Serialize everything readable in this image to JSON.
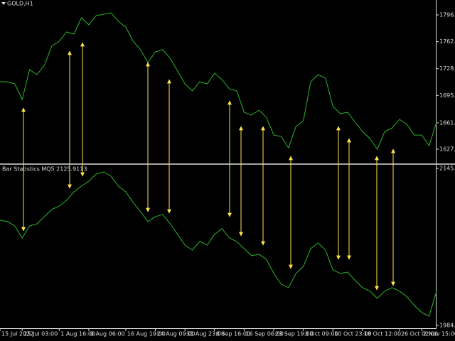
{
  "chart_data": [
    {
      "type": "line",
      "title": "GOLD,H1",
      "color": "#2bb52b",
      "values": [
        1712.6,
        1712.6,
        1709.9,
        1690.3,
        1727.7,
        1721.5,
        1733.1,
        1757.2,
        1763.4,
        1775.0,
        1772.3,
        1792.8,
        1783.9,
        1795.5,
        1797.3,
        1799.1,
        1788.4,
        1781.2,
        1763.4,
        1752.7,
        1736.6,
        1750.0,
        1752.7,
        1742.0,
        1725.9,
        1709.9,
        1701.0,
        1712.6,
        1709.9,
        1723.3,
        1715.3,
        1703.7,
        1701.0,
        1674.2,
        1670.7,
        1676.9,
        1668.0,
        1645.7,
        1643.9,
        1629.7,
        1656.4,
        1663.5,
        1712.6,
        1721.5,
        1717.0,
        1681.4,
        1672.5,
        1674.2,
        1661.8,
        1650.2,
        1641.3,
        1627.9,
        1650.2,
        1654.6,
        1665.3,
        1659.1,
        1645.7,
        1645.7,
        1632.3,
        1661.8
      ],
      "ylim": [
        1610.1,
        1815.1
      ],
      "yticks": [
        {
          "value": 1796.4,
          "label": "1796.40"
        },
        {
          "value": 1762.9,
          "label": "1762.90"
        },
        {
          "value": 1728.9,
          "label": "1728.90"
        },
        {
          "value": 1695.4,
          "label": "1695.40"
        },
        {
          "value": 1661.0,
          "label": "1661.00"
        },
        {
          "value": 1627.9,
          "label": "1627.90"
        }
      ]
    },
    {
      "type": "line",
      "title": "Bar Statistics MQ5 2125.9113",
      "color": "#2bb52b",
      "categories": [
        "15 Jul 2022",
        null,
        null,
        "25 Jul 03:00",
        null,
        null,
        null,
        null,
        "1 Aug 16:00",
        null,
        null,
        null,
        "9 Aug 06:00",
        null,
        null,
        null,
        null,
        "16 Aug 19:00",
        null,
        null,
        null,
        "24 Aug 09:00",
        null,
        null,
        null,
        "31 Aug 23:00",
        null,
        null,
        null,
        "8 Sep 16:00",
        null,
        null,
        null,
        "16 Sep 06:00",
        null,
        null,
        null,
        "23 Sep 19:00",
        null,
        null,
        null,
        "3 Oct 09:00",
        null,
        null,
        null,
        "10 Oct 23:00",
        null,
        null,
        null,
        "18 Oct 12:00",
        null,
        null,
        null,
        null,
        "26 Oct 02:00",
        null,
        null,
        "2 Nov 15:00",
        null,
        null
      ],
      "values": [
        2092.0,
        2090.6,
        2086.2,
        2073.8,
        2086.2,
        2088.4,
        2095.7,
        2103.0,
        2106.6,
        2112.5,
        2121.2,
        2127.0,
        2132.1,
        2139.4,
        2141.6,
        2137.2,
        2127.0,
        2121.2,
        2110.3,
        2100.8,
        2090.6,
        2095.7,
        2097.9,
        2088.4,
        2077.5,
        2066.5,
        2061.4,
        2070.2,
        2066.5,
        2077.5,
        2083.3,
        2073.8,
        2070.2,
        2062.9,
        2055.6,
        2057.1,
        2052.0,
        2037.4,
        2026.4,
        2022.8,
        2037.4,
        2044.7,
        2062.9,
        2068.7,
        2061.4,
        2041.0,
        2037.4,
        2038.8,
        2030.1,
        2022.8,
        2019.2,
        2011.9,
        2019.2,
        2022.8,
        2019.2,
        2013.3,
        2004.6,
        1997.3,
        1993.6,
        2019.2
      ],
      "ylim": [
        1969.5,
        2148.9
      ],
      "yticks": [
        2145.226,
        1984.1091
      ]
    }
  ]
}
